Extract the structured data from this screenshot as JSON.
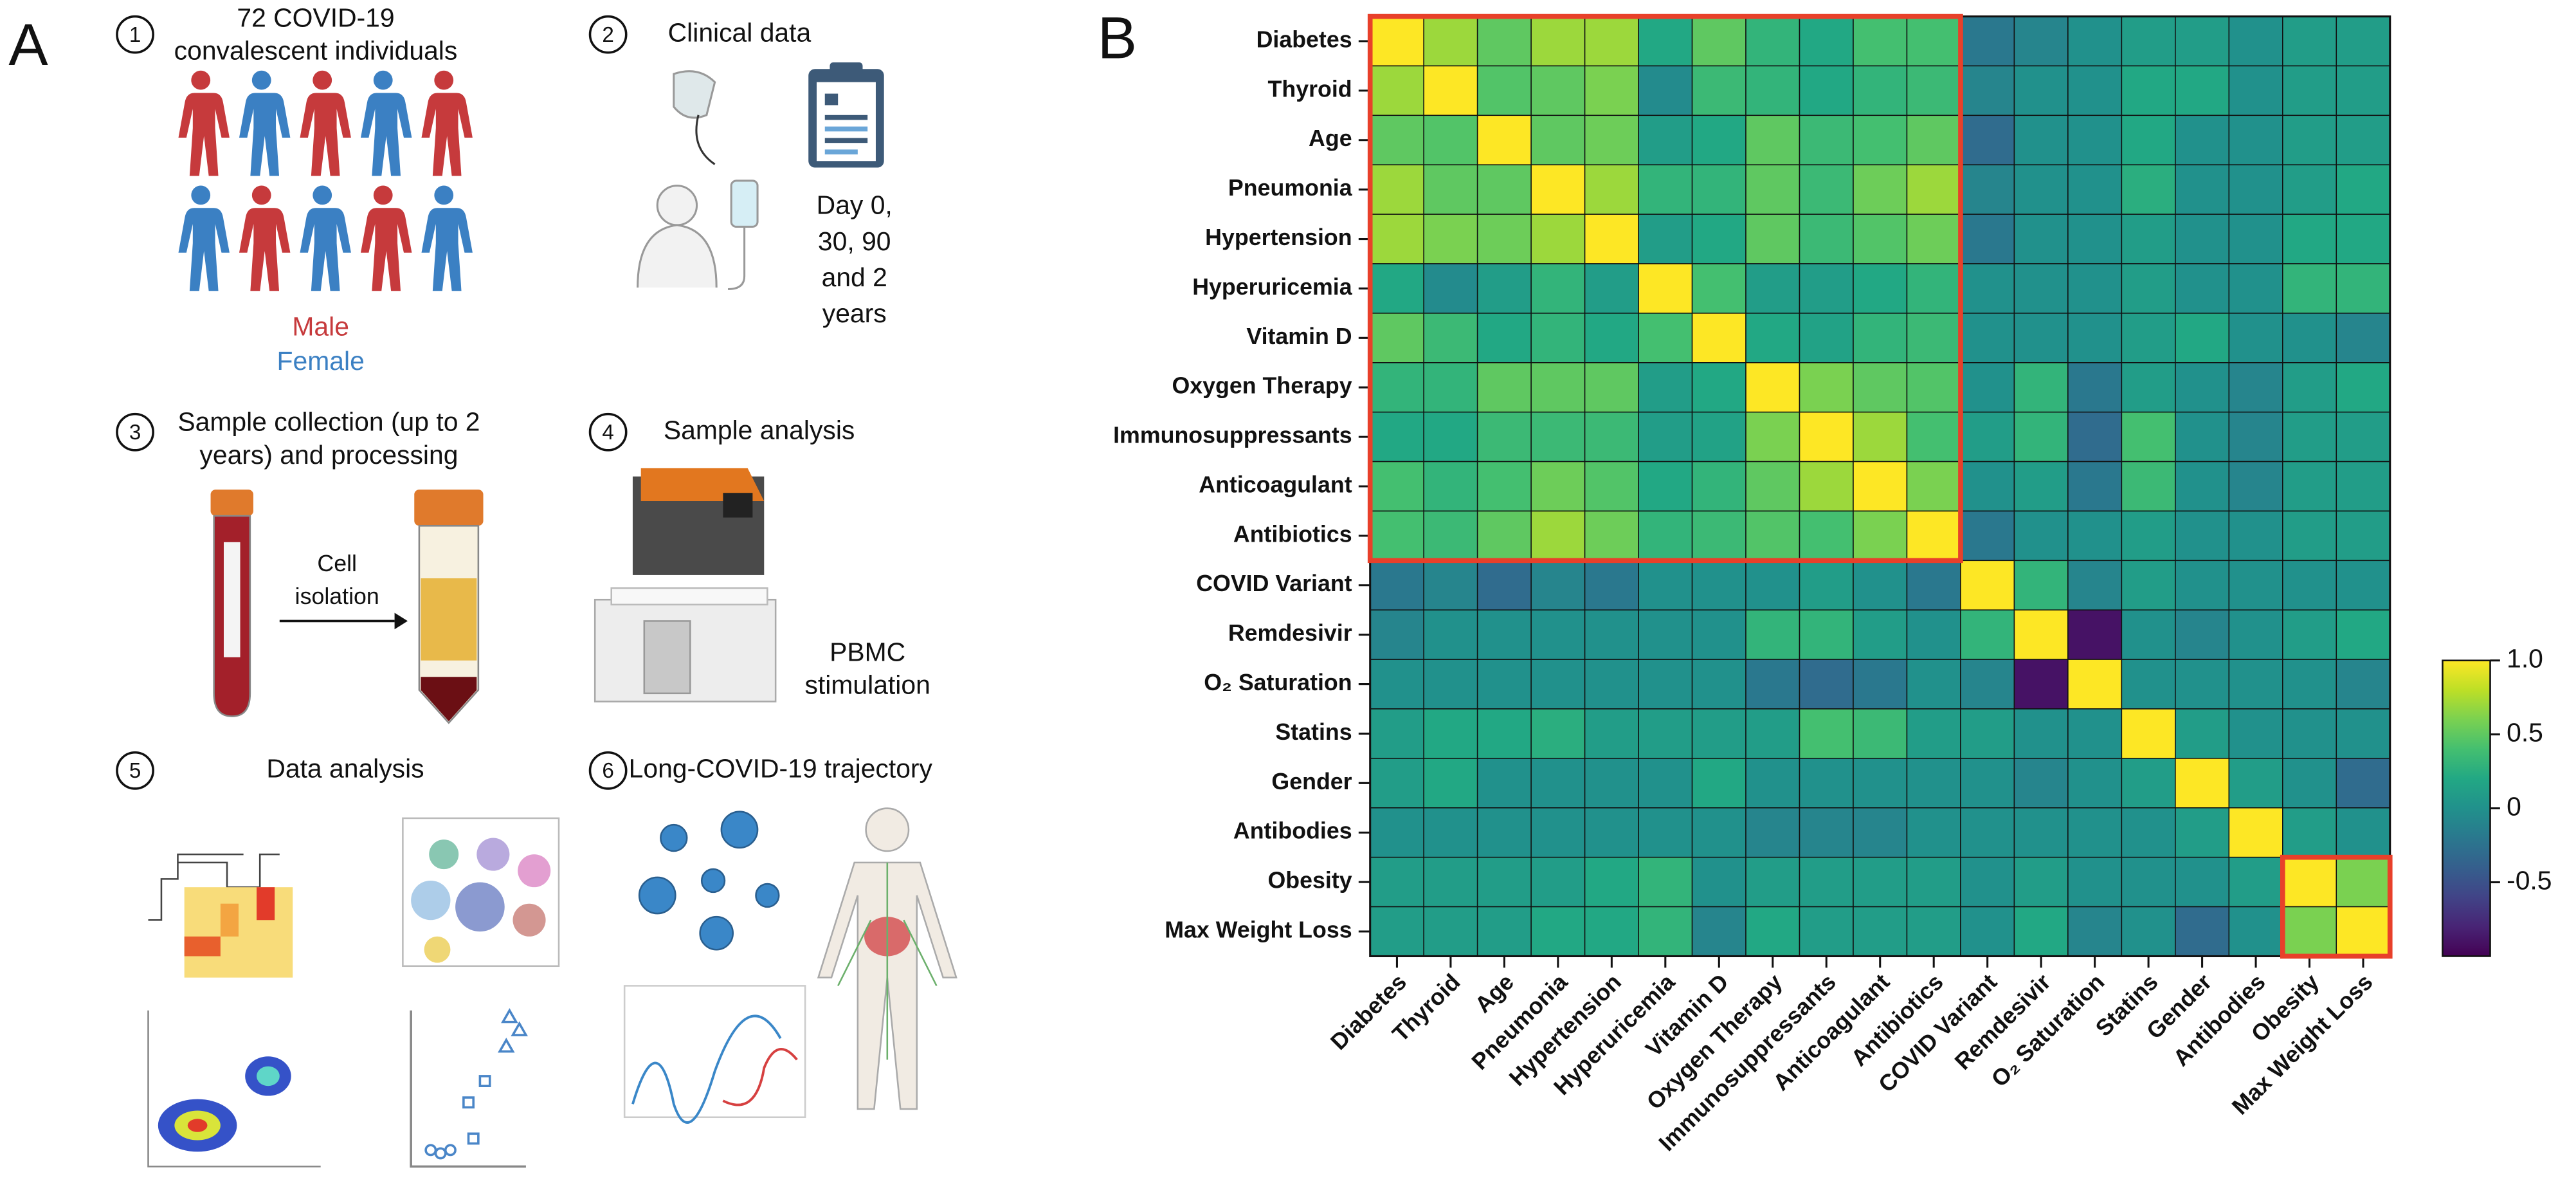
{
  "panel_a": {
    "label": "A",
    "steps": [
      {
        "number": "1",
        "title": [
          "72 COVID-19",
          "convalescent individuals"
        ],
        "legend": [
          "Male",
          "Female"
        ]
      },
      {
        "number": "2",
        "title": [
          "Clinical data"
        ],
        "note": [
          "Day 0,",
          "30, 90",
          "and 2",
          "years"
        ]
      },
      {
        "number": "3",
        "title": [
          "Sample collection (up to 2",
          "years) and processing"
        ],
        "note": [
          "Cell",
          "isolation"
        ]
      },
      {
        "number": "4",
        "title": [
          "Sample analysis"
        ],
        "note": [
          "PBMC",
          "stimulation"
        ]
      },
      {
        "number": "5",
        "title": [
          "Data analysis"
        ]
      },
      {
        "number": "6",
        "title": [
          "Long-COVID-19 trajectory"
        ]
      }
    ]
  },
  "chart_data": {
    "type": "heatmap",
    "label": "B",
    "categories": [
      "Diabetes",
      "Thyroid",
      "Age",
      "Pneumonia",
      "Hypertension",
      "Hyperuricemia",
      "Vitamin D",
      "Oxygen Therapy",
      "Immunosuppressants",
      "Anticoagulant",
      "Antibiotics",
      "COVID Variant",
      "Remdesivir",
      "O₂ Saturation",
      "Statins",
      "Gender",
      "Antibodies",
      "Obesity",
      "Max Weight Loss"
    ],
    "values": [
      [
        1,
        0.7,
        0.5,
        0.7,
        0.7,
        0.2,
        0.5,
        0.3,
        0.2,
        0.4,
        0.4,
        -0.2,
        -0.1,
        0,
        0.1,
        0.1,
        0,
        0.1,
        0.1
      ],
      [
        0.7,
        1,
        0.45,
        0.5,
        0.6,
        -0.05,
        0.35,
        0.3,
        0.2,
        0.3,
        0.35,
        -0.1,
        0,
        0,
        0.2,
        0.2,
        0,
        0.1,
        0.1
      ],
      [
        0.5,
        0.45,
        1,
        0.5,
        0.55,
        0.1,
        0.2,
        0.5,
        0.35,
        0.4,
        0.5,
        -0.3,
        0,
        0,
        0.2,
        0,
        0,
        0.1,
        0.1
      ],
      [
        0.7,
        0.5,
        0.5,
        1,
        0.7,
        0.3,
        0.3,
        0.5,
        0.35,
        0.55,
        0.7,
        -0.1,
        0,
        0,
        0.25,
        0,
        0,
        0.1,
        0.2
      ],
      [
        0.7,
        0.6,
        0.55,
        0.7,
        1,
        0.1,
        0.2,
        0.5,
        0.35,
        0.45,
        0.55,
        -0.2,
        0,
        0,
        0.1,
        0,
        0,
        0.2,
        0.2
      ],
      [
        0.2,
        -0.05,
        0.1,
        0.3,
        0.1,
        1,
        0.4,
        0.1,
        0.1,
        0.2,
        0.3,
        0,
        0,
        0,
        0.1,
        0,
        0,
        0.3,
        0.3
      ],
      [
        0.5,
        0.35,
        0.2,
        0.3,
        0.2,
        0.4,
        1,
        0.2,
        0.15,
        0.3,
        0.35,
        0,
        0,
        0,
        0.1,
        0.2,
        0,
        0,
        -0.1
      ],
      [
        0.3,
        0.3,
        0.5,
        0.5,
        0.5,
        0.1,
        0.2,
        1,
        0.6,
        0.5,
        0.45,
        0,
        0.3,
        -0.2,
        0.1,
        0,
        -0.1,
        0.1,
        0.2
      ],
      [
        0.2,
        0.2,
        0.35,
        0.35,
        0.35,
        0.1,
        0.15,
        0.6,
        1,
        0.7,
        0.4,
        0.1,
        0.3,
        -0.3,
        0.4,
        0,
        -0.1,
        0.1,
        0.1
      ],
      [
        0.4,
        0.3,
        0.4,
        0.55,
        0.45,
        0.2,
        0.3,
        0.5,
        0.7,
        1,
        0.6,
        0,
        0.1,
        -0.2,
        0.35,
        0,
        -0.1,
        0.1,
        0.1
      ],
      [
        0.4,
        0.35,
        0.5,
        0.7,
        0.55,
        0.3,
        0.35,
        0.45,
        0.4,
        0.6,
        1,
        -0.2,
        0,
        0,
        0.1,
        0,
        0,
        0.1,
        0.1
      ],
      [
        -0.2,
        -0.1,
        -0.3,
        -0.1,
        -0.2,
        0,
        0,
        0,
        0.1,
        0,
        -0.2,
        1,
        0.3,
        -0.1,
        0.1,
        0,
        0,
        0,
        0
      ],
      [
        -0.1,
        0,
        0,
        0,
        0,
        0,
        0,
        0.3,
        0.3,
        0.1,
        0,
        0.3,
        1,
        -0.9,
        0,
        -0.1,
        0,
        0.1,
        0.2
      ],
      [
        0,
        0,
        0,
        0,
        0,
        0,
        0,
        -0.2,
        -0.3,
        -0.2,
        0,
        -0.1,
        -0.9,
        1,
        0,
        0,
        0,
        0,
        -0.1
      ],
      [
        0.1,
        0.2,
        0.2,
        0.25,
        0.1,
        0.1,
        0.1,
        0.1,
        0.4,
        0.35,
        0.1,
        0.1,
        0,
        0,
        1,
        0.1,
        0,
        0,
        0
      ],
      [
        0.1,
        0.2,
        0,
        0,
        0,
        0,
        0.2,
        0,
        0,
        0,
        0,
        0,
        -0.1,
        0,
        0.1,
        1,
        0.1,
        0,
        -0.3
      ],
      [
        0,
        0,
        0,
        0,
        0,
        0,
        0,
        -0.1,
        -0.1,
        -0.1,
        0,
        0,
        0,
        0,
        0,
        0.1,
        1,
        0.1,
        0
      ],
      [
        0.1,
        0.1,
        0.1,
        0.1,
        0.2,
        0.3,
        0,
        0.1,
        0.1,
        0.1,
        0.1,
        0,
        0.1,
        0,
        0,
        0,
        0.1,
        1,
        0.6
      ],
      [
        0.1,
        0.1,
        0.1,
        0.2,
        0.2,
        0.3,
        -0.1,
        0.2,
        0.1,
        0.1,
        0.1,
        0,
        0.2,
        -0.1,
        0,
        -0.3,
        0,
        0.6,
        1
      ]
    ],
    "colormap": "viridis",
    "clim": [
      -1,
      1
    ],
    "cticks": [
      {
        "value": 1,
        "label": "1.0"
      },
      0.5,
      0,
      -0.5
    ],
    "highlight_color": "#e8402a",
    "highlight_boxes": [
      {
        "from": 0,
        "to": 10
      },
      {
        "from": 17,
        "to": 18
      }
    ]
  }
}
